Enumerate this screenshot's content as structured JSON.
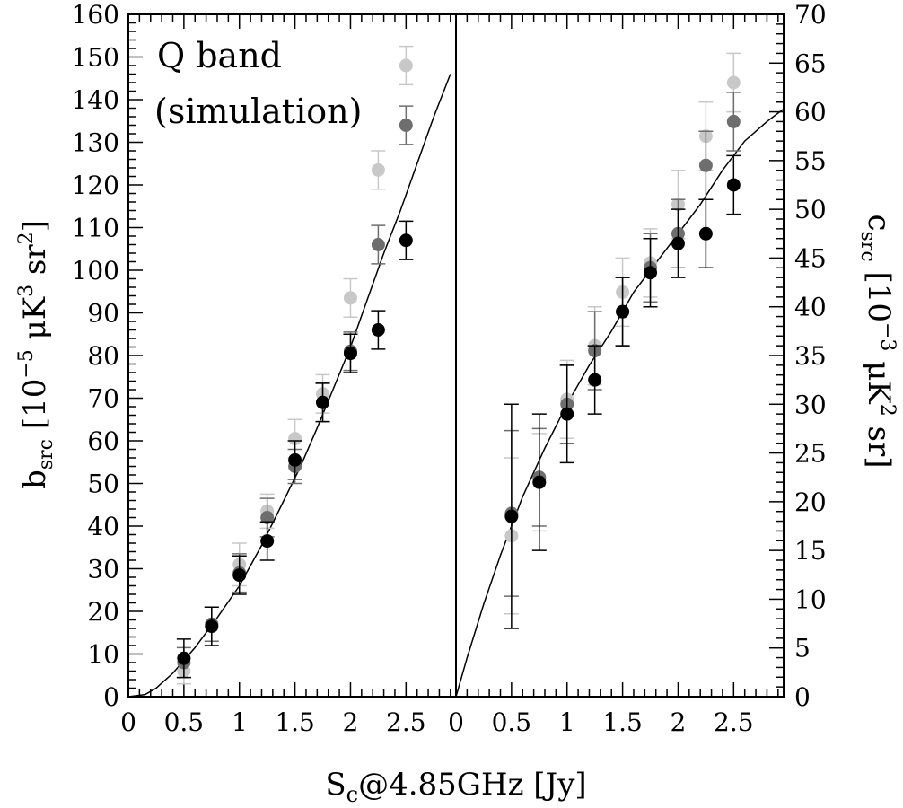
{
  "chart_data": [
    {
      "panel": "left",
      "type": "scatter",
      "annotation_lines": [
        "Q band",
        "(simulation)"
      ],
      "xlabel": "S_c@4.85GHz [Jy]",
      "xlabel_parts": {
        "main": "S",
        "sub": "c",
        "rest": "@4.85GHz [Jy]"
      },
      "ylabel": "b_src [10^-5 μK^3 sr^2]",
      "ylabel_parts": {
        "main": "b",
        "sub": "src",
        "open": " [10",
        "sup1": "−5",
        "mid": " μK",
        "sup2": "3",
        "mid2": " sr",
        "sup3": "2",
        "close": "]"
      },
      "xlim": [
        0,
        2.95
      ],
      "ylim": [
        0,
        160
      ],
      "x_ticks": [
        0,
        0.5,
        1,
        1.5,
        2,
        2.5
      ],
      "x_tick_labels": [
        "0",
        "0.5",
        "1",
        "1.5",
        "2",
        "2.5"
      ],
      "y_ticks": [
        0,
        10,
        20,
        30,
        40,
        50,
        60,
        70,
        80,
        90,
        100,
        110,
        120,
        130,
        140,
        150,
        160
      ],
      "y_tick_labels": [
        "0",
        "10",
        "20",
        "30",
        "40",
        "50",
        "60",
        "70",
        "80",
        "90",
        "100",
        "110",
        "120",
        "130",
        "140",
        "150",
        "160"
      ],
      "series": [
        {
          "color": "#c8c8c8",
          "x": [
            0.5,
            0.75,
            1.0,
            1.25,
            1.5,
            1.75,
            2.0,
            2.25,
            2.5
          ],
          "y": [
            6,
            17,
            31,
            43.5,
            60.5,
            71,
            93.5,
            123.5,
            148
          ],
          "err": [
            3,
            4,
            5,
            4,
            4.5,
            4.5,
            4.5,
            4.5,
            4.5
          ]
        },
        {
          "color": "#6e6e6e",
          "x": [
            0.5,
            0.75,
            1.0,
            1.25,
            1.5,
            1.75,
            2.0,
            2.25,
            2.5
          ],
          "y": [
            8,
            17,
            29,
            42,
            54,
            69,
            81,
            106,
            134
          ],
          "err": [
            3.5,
            4,
            4.5,
            4.5,
            4,
            4.5,
            4.5,
            4.5,
            4.5
          ]
        },
        {
          "color": "#000000",
          "x": [
            0.5,
            0.75,
            1.0,
            1.25,
            1.5,
            1.75,
            2.0,
            2.25,
            2.5
          ],
          "y": [
            9,
            16.5,
            28.5,
            36.5,
            55.5,
            69,
            80.5,
            86,
            107
          ],
          "err": [
            4.5,
            4.5,
            4.5,
            4.5,
            4.5,
            4.5,
            4.5,
            4.5,
            4.5
          ]
        }
      ],
      "model_curve": {
        "x": [
          0,
          0.15,
          0.25,
          0.4,
          0.6,
          0.8,
          1.0,
          1.2,
          1.4,
          1.55,
          1.7,
          1.85,
          2.0,
          2.15,
          2.3,
          2.45,
          2.6,
          2.75,
          2.9
        ],
        "y": [
          0,
          0.5,
          2,
          5.5,
          11.5,
          18.5,
          26,
          35.5,
          46,
          54,
          63,
          72.5,
          82,
          93,
          104,
          114,
          125,
          136,
          146
        ]
      }
    },
    {
      "panel": "right",
      "type": "scatter",
      "xlim": [
        0,
        2.95
      ],
      "ylim": [
        0,
        70
      ],
      "ylabel": "c_src [10^-3 μK^2 sr]",
      "ylabel_parts": {
        "main": "c",
        "sub": "src",
        "open": " [10",
        "sup1": "−3",
        "mid": " μK",
        "sup2": "2",
        "close": " sr]"
      },
      "x_ticks": [
        0,
        0.5,
        1,
        1.5,
        2,
        2.5
      ],
      "x_tick_labels": [
        "0",
        "0.5",
        "1",
        "1.5",
        "2",
        "2.5"
      ],
      "y_ticks": [
        0,
        5,
        10,
        15,
        20,
        25,
        30,
        35,
        40,
        45,
        50,
        55,
        60,
        65,
        70
      ],
      "y_tick_labels": [
        "0",
        "5",
        "10",
        "15",
        "20",
        "25",
        "30",
        "35",
        "40",
        "45",
        "50",
        "55",
        "60",
        "65",
        "70"
      ],
      "series": [
        {
          "color": "#c8c8c8",
          "x": [
            0.5,
            0.75,
            1.0,
            1.25,
            1.5,
            1.75,
            2.0,
            2.25,
            2.5
          ],
          "y": [
            16.5,
            22,
            30.5,
            36,
            41.5,
            44.5,
            50.5,
            57.5,
            63
          ],
          "err": [
            8,
            5,
            4,
            4,
            3.5,
            3.5,
            3.5,
            3.5,
            3
          ]
        },
        {
          "color": "#6e6e6e",
          "x": [
            0.5,
            0.75,
            1.0,
            1.25,
            1.5,
            1.75,
            2.0,
            2.25,
            2.5
          ],
          "y": [
            18.8,
            22.5,
            30,
            35.5,
            39.5,
            44,
            47.5,
            54.5,
            59
          ],
          "err": [
            8.5,
            5,
            4,
            4,
            3.5,
            3.5,
            3.5,
            3.5,
            3
          ]
        },
        {
          "color": "#000000",
          "x": [
            0.5,
            0.75,
            1.0,
            1.25,
            1.5,
            1.75,
            2.0,
            2.25,
            2.5
          ],
          "y": [
            18.5,
            22,
            29,
            32.5,
            39.5,
            43.5,
            46.5,
            47.5,
            52.5
          ],
          "err": [
            11.5,
            7,
            5,
            3.5,
            3.5,
            3.5,
            3.5,
            3.5,
            3
          ]
        }
      ],
      "model_curve": {
        "x": [
          0,
          0.1,
          0.25,
          0.4,
          0.6,
          0.8,
          1.0,
          1.2,
          1.4,
          1.6,
          1.8,
          2.0,
          2.2,
          2.4,
          2.6,
          2.8,
          2.95
        ],
        "y": [
          0,
          4,
          9.5,
          14.5,
          20.5,
          25.5,
          30,
          34,
          37.5,
          41.5,
          44.5,
          47.5,
          50.5,
          54,
          57,
          59,
          60.3
        ]
      }
    }
  ]
}
